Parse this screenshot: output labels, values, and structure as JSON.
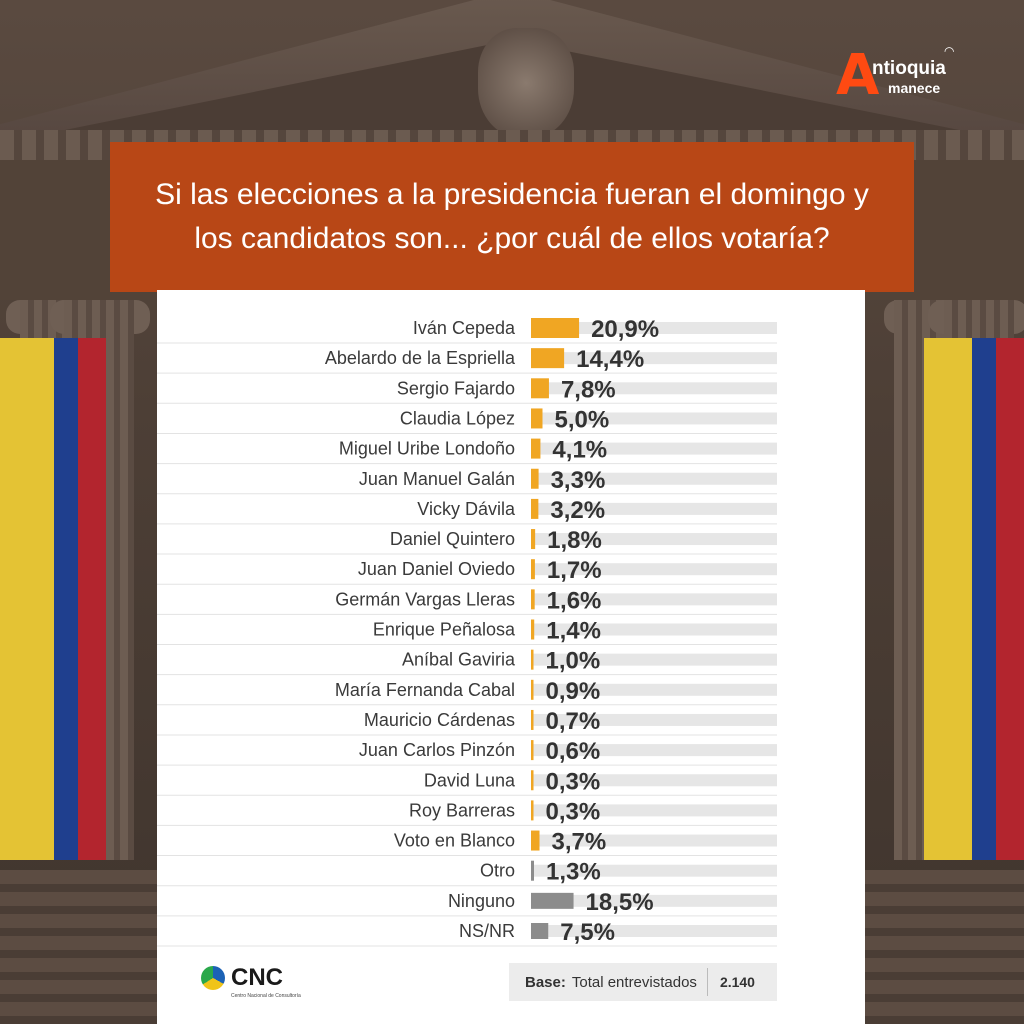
{
  "header": {
    "question": "Si las elecciones a la presidencia fueran el domingo y los candidatos son... ¿por cuál de ellos votaría?"
  },
  "brand": {
    "logo_letter": "A",
    "logo_line1": "ntioquia",
    "logo_line2": "manece"
  },
  "footer": {
    "source_logo": "CNC",
    "source_subtitle": "Centro Nacional de Consultoría",
    "base_label": "Base:",
    "base_text": "Total entrevistados",
    "base_value": "2.140"
  },
  "colors": {
    "accent_bar": "#f0a623",
    "neutral_bar": "#8c8c8c",
    "track": "#e6e6e6",
    "banner": "#b84716",
    "flag_yellow": "#e4c334",
    "flag_blue": "#1f3f8e",
    "flag_red": "#b3252e"
  },
  "chart_data": {
    "type": "bar",
    "orientation": "horizontal",
    "title": "Si las elecciones a la presidencia fueran el domingo y los candidatos son... ¿por cuál de ellos votaría?",
    "categories": [
      "Iván Cepeda",
      "Abelardo de la Espriella",
      "Sergio Fajardo",
      "Claudia López",
      "Miguel Uribe Londoño",
      "Juan Manuel Galán",
      "Vicky Dávila",
      "Daniel Quintero",
      "Juan Daniel Oviedo",
      "Germán Vargas Lleras",
      "Enrique Peñalosa",
      "Aníbal Gaviria",
      "María Fernanda Cabal",
      "Mauricio Cárdenas",
      "Juan Carlos Pinzón",
      "David Luna",
      "Roy Barreras",
      "Voto en Blanco",
      "Otro",
      "Ninguno",
      "NS/NR"
    ],
    "values": [
      20.9,
      14.4,
      7.8,
      5.0,
      4.1,
      3.3,
      3.2,
      1.8,
      1.7,
      1.6,
      1.4,
      1.0,
      0.9,
      0.7,
      0.6,
      0.3,
      0.3,
      3.7,
      1.3,
      18.5,
      7.5
    ],
    "value_labels": [
      "20,9%",
      "14,4%",
      "7,8%",
      "5,0%",
      "4,1%",
      "3,3%",
      "3,2%",
      "1,8%",
      "1,7%",
      "1,6%",
      "1,4%",
      "1,0%",
      "0,9%",
      "0,7%",
      "0,6%",
      "0,3%",
      "0,3%",
      "3,7%",
      "1,3%",
      "18,5%",
      "7,5%"
    ],
    "bar_colors": [
      "accent",
      "accent",
      "accent",
      "accent",
      "accent",
      "accent",
      "accent",
      "accent",
      "accent",
      "accent",
      "accent",
      "accent",
      "accent",
      "accent",
      "accent",
      "accent",
      "accent",
      "accent",
      "neutral",
      "neutral",
      "neutral"
    ],
    "xlim": [
      0,
      100
    ],
    "unit": "%",
    "grid": false
  }
}
